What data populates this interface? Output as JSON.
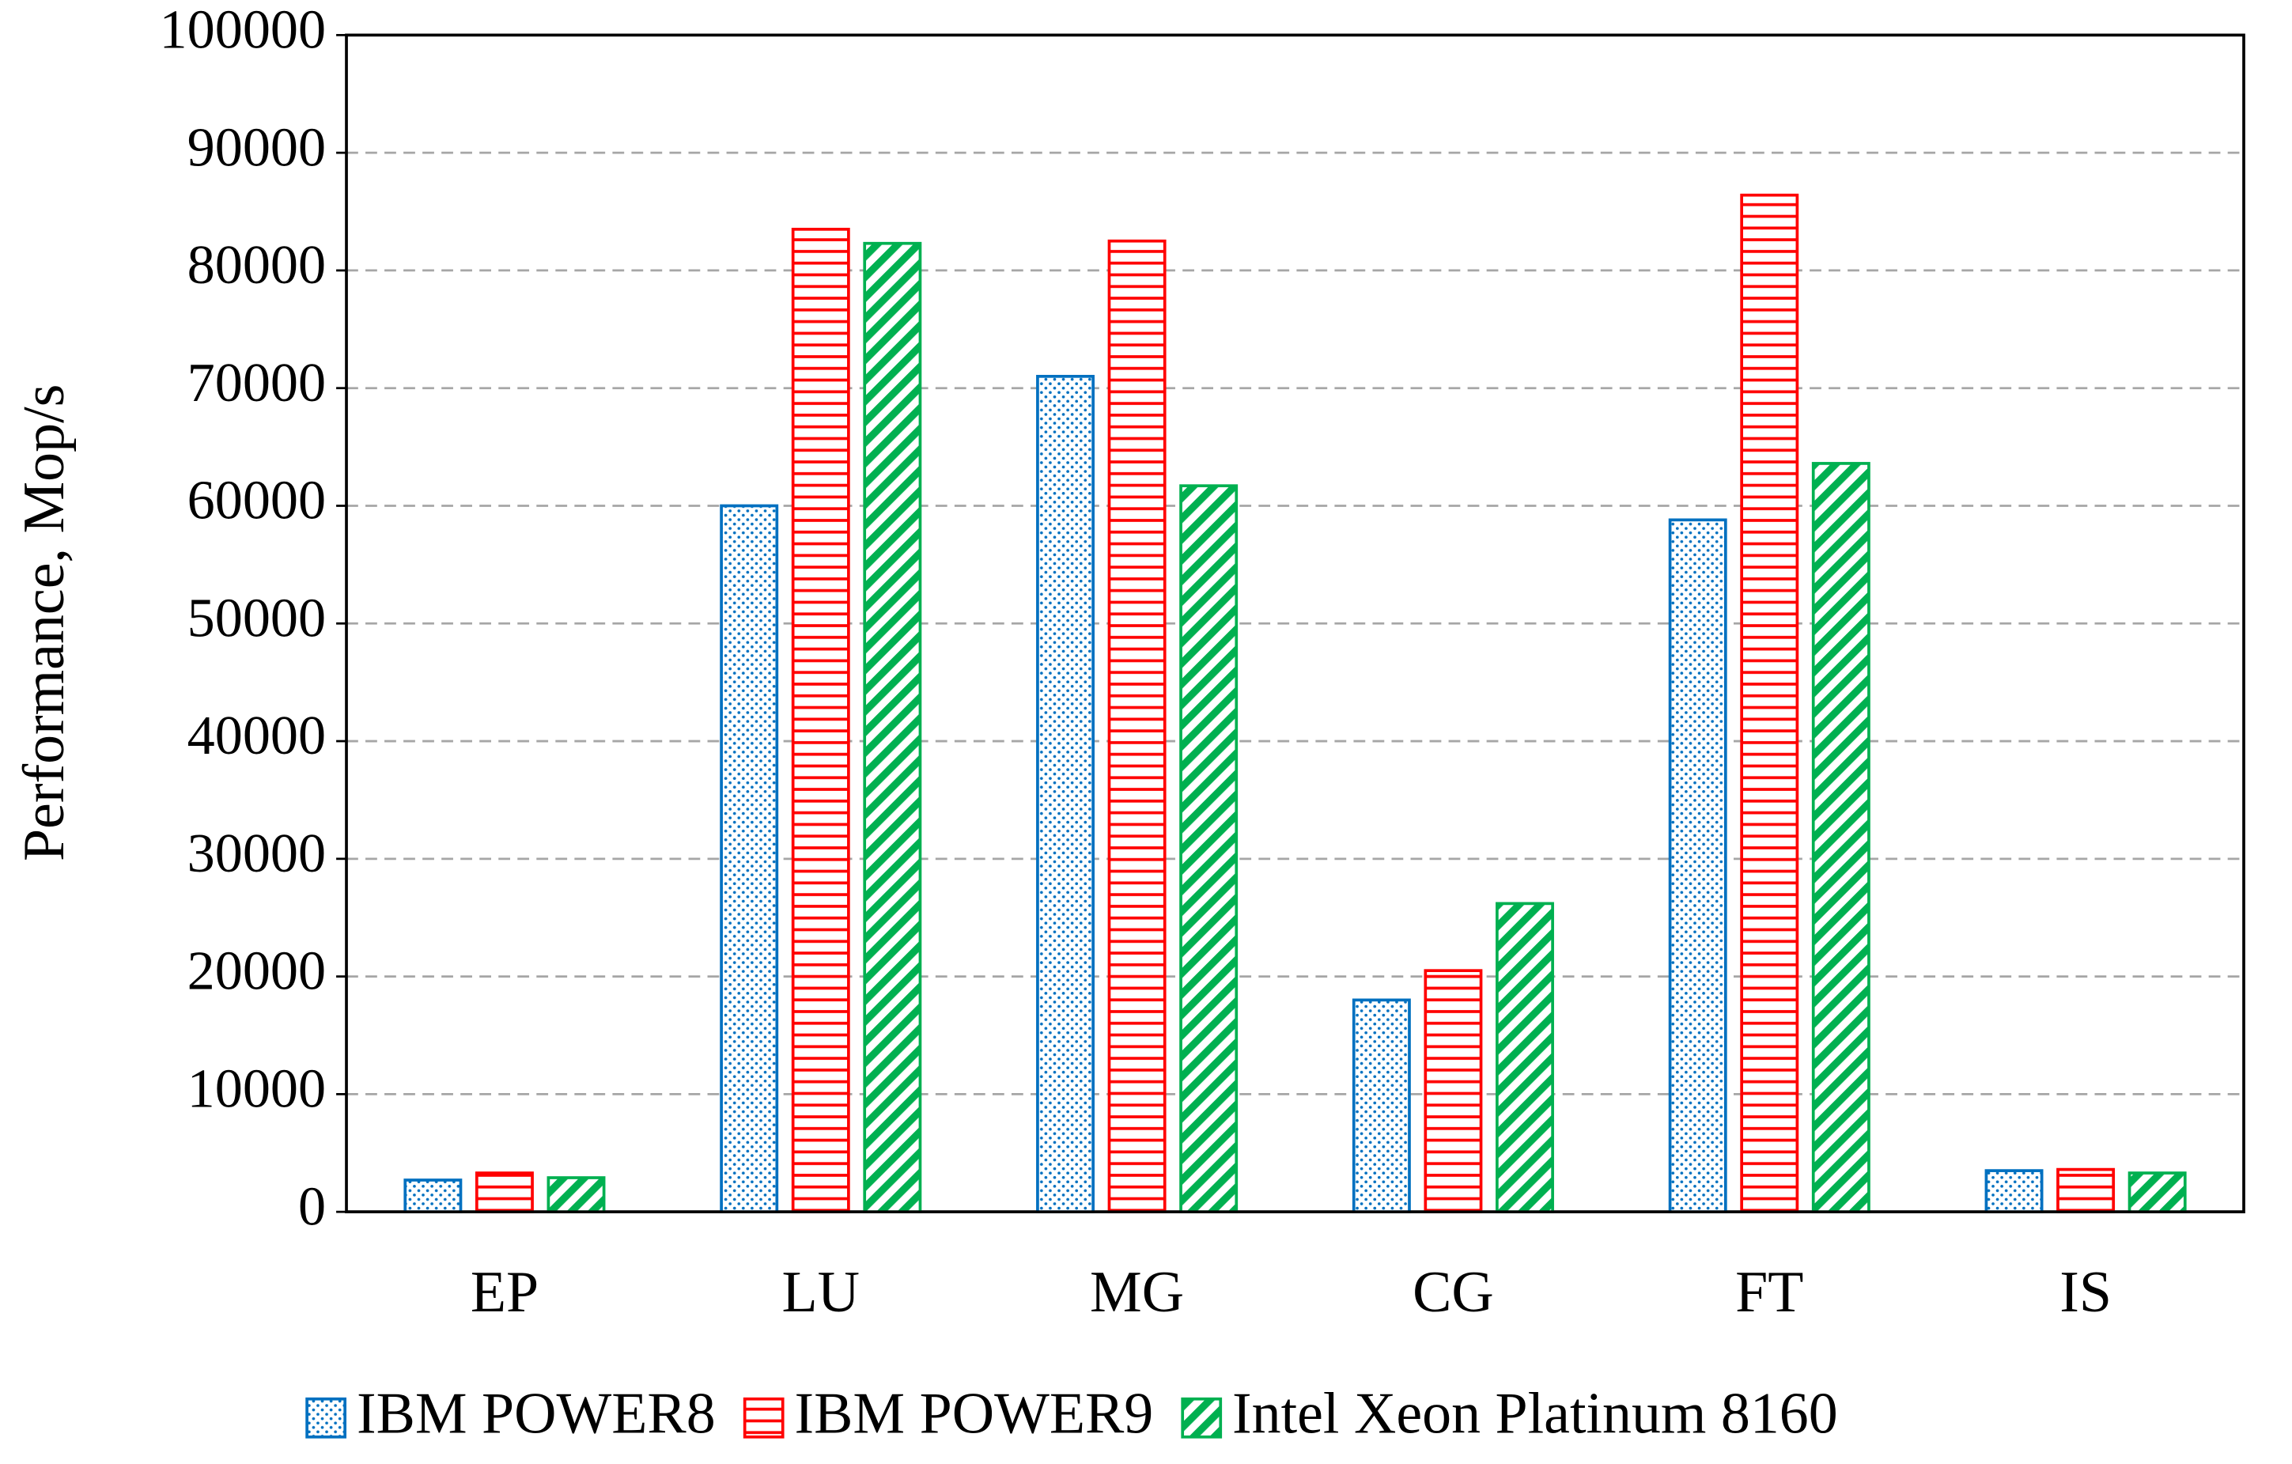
{
  "chart_data": {
    "type": "bar",
    "y_label": "Performance, Mop/s",
    "categories": [
      "EP",
      "LU",
      "MG",
      "CG",
      "FT",
      "IS"
    ],
    "series": [
      {
        "name": "IBM POWER8",
        "color": "#0070c0",
        "pattern": "dots",
        "values": [
          2700,
          60000,
          71000,
          18000,
          58800,
          3500
        ]
      },
      {
        "name": "IBM POWER9",
        "color": "#ff0000",
        "pattern": "horizontal",
        "values": [
          3300,
          83500,
          82500,
          20500,
          86400,
          3600
        ]
      },
      {
        "name": "Intel Xeon Platinum 8160",
        "color": "#00b050",
        "pattern": "diagonal",
        "values": [
          2900,
          82300,
          61700,
          26200,
          63600,
          3300
        ]
      }
    ],
    "ylim": [
      0,
      100000
    ],
    "yticks": [
      0,
      10000,
      20000,
      30000,
      40000,
      50000,
      60000,
      70000,
      80000,
      90000,
      100000
    ],
    "grid": true,
    "legend": "bottom"
  }
}
